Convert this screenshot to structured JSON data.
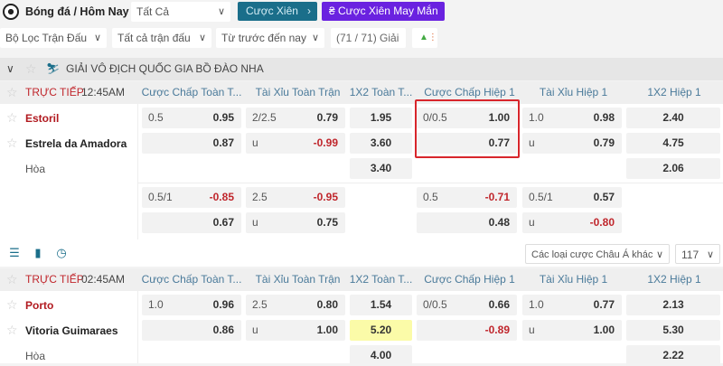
{
  "topbar": {
    "title": "Bóng đá / Hôm Nay",
    "sport_select": "Tất Cả",
    "parlay_btn": "Cược Xiên",
    "lucky_parlay_btn": "Cược Xiên May Mắn"
  },
  "filters": {
    "match_filter": "Bộ Lọc Trận Đấu",
    "all_matches": "Tất cả trận đấu",
    "time_range": "Từ trước đến nay",
    "league_count": "(71 / 71) Giải"
  },
  "league": {
    "name": "GIẢI VÔ ĐỊCH QUỐC GIA BỒ ĐÀO NHA"
  },
  "columns": [
    "Cược Chấp Toàn T...",
    "Tài Xỉu Toàn Trận",
    "1X2 Toàn T...",
    "Cược Chấp Hiệp 1",
    "Tài Xỉu Hiệp 1",
    "1X2 Hiệp 1"
  ],
  "toolbar": {
    "bet_type_select": "Các loại cược Châu Á khác",
    "more_count": "117"
  },
  "matches": [
    {
      "status": "TRỰC TIẾP",
      "time": "12:45AM",
      "home": "Estoril",
      "away": "Estrela da Amadora",
      "draw": "Hòa",
      "lines": [
        [
          [
            {
              "l": "0.5",
              "o": "0.95"
            },
            {
              "l": "",
              "o": "0.87"
            }
          ],
          [
            {
              "l": "2/2.5",
              "o": "0.79"
            },
            {
              "l": "u",
              "o": "-0.99"
            }
          ],
          [
            {
              "o": "1.95"
            },
            {
              "o": "3.60"
            },
            {
              "o": "3.40"
            }
          ],
          [
            {
              "l": "0/0.5",
              "o": "1.00"
            },
            {
              "l": "",
              "o": "0.77"
            }
          ],
          [
            {
              "l": "1.0",
              "o": "0.98"
            },
            {
              "l": "u",
              "o": "0.79"
            }
          ],
          [
            {
              "o": "2.40"
            },
            {
              "o": "4.75"
            },
            {
              "o": "2.06"
            }
          ]
        ],
        [
          [
            {
              "l": "0.5/1",
              "o": "-0.85"
            },
            {
              "l": "",
              "o": "0.67"
            }
          ],
          [
            {
              "l": "2.5",
              "o": "-0.95"
            },
            {
              "l": "u",
              "o": "0.75"
            }
          ],
          [],
          [
            {
              "l": "0.5",
              "o": "-0.71"
            },
            {
              "l": "",
              "o": "0.48"
            }
          ],
          [
            {
              "l": "0.5/1",
              "o": "0.57"
            },
            {
              "l": "u",
              "o": "-0.80"
            }
          ],
          []
        ]
      ]
    },
    {
      "status": "TRỰC TIẾP",
      "time": "02:45AM",
      "home": "Porto",
      "away": "Vitoria Guimaraes",
      "draw": "Hòa",
      "lines": [
        [
          [
            {
              "l": "1.0",
              "o": "0.96"
            },
            {
              "l": "",
              "o": "0.86"
            }
          ],
          [
            {
              "l": "2.5",
              "o": "0.80"
            },
            {
              "l": "u",
              "o": "1.00"
            }
          ],
          [
            {
              "o": "1.54"
            },
            {
              "o": "5.20",
              "hl": true
            },
            {
              "o": "4.00"
            }
          ],
          [
            {
              "l": "0/0.5",
              "o": "0.66"
            },
            {
              "l": "",
              "o": "-0.89"
            }
          ],
          [
            {
              "l": "1.0",
              "o": "0.77"
            },
            {
              "l": "u",
              "o": "1.00"
            }
          ],
          [
            {
              "o": "2.13"
            },
            {
              "o": "5.30"
            },
            {
              "o": "2.22"
            }
          ]
        ]
      ]
    }
  ],
  "colors": {
    "accent": "#1a6e8a",
    "lucky": "#6a22e0",
    "live": "#c0262c",
    "highlight": "#d8262c"
  }
}
